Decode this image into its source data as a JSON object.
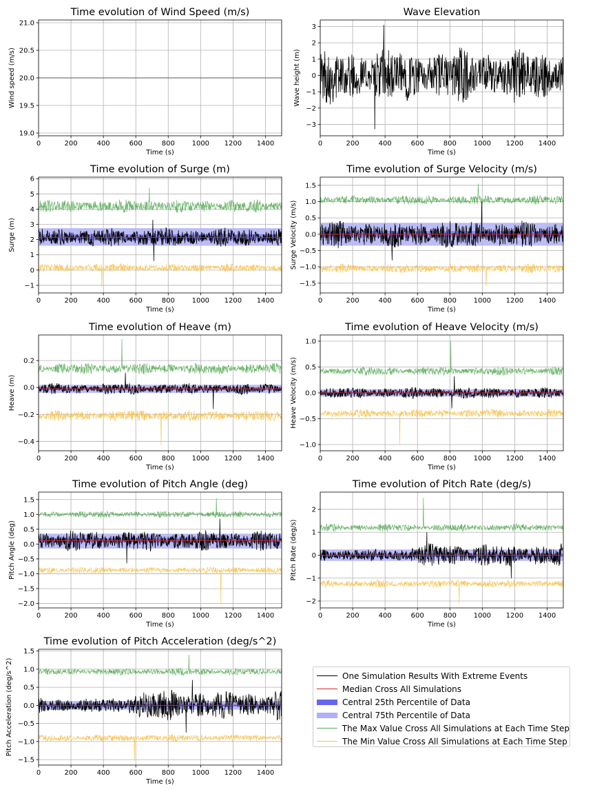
{
  "colors": {
    "simulation": "#000000",
    "median": "#d62728",
    "central25": "#6666ee",
    "central75": "#b0b0f5",
    "max": "#5aab5a",
    "min": "#f7c04a",
    "grid": "#b0b0b0"
  },
  "legend": {
    "items": [
      {
        "label": "One Simulation Results With Extreme Events",
        "key": "simulation",
        "style": "line"
      },
      {
        "label": "Median Cross All Simulations",
        "key": "median",
        "style": "line"
      },
      {
        "label": "Central 25th Percentile of Data",
        "key": "central25",
        "style": "band"
      },
      {
        "label": "Central 75th Percentile of Data",
        "key": "central75",
        "style": "band"
      },
      {
        "label": "The Max Value Cross All Simulations at Each Time Step",
        "key": "max",
        "style": "line"
      },
      {
        "label": "The Min Value Cross All Simulations at Each Time Step",
        "key": "min",
        "style": "line"
      }
    ]
  },
  "chart_data": [
    {
      "id": "wind",
      "type": "line",
      "title": "Time evolution of Wind Speed (m/s)",
      "xlabel": "Time (s)",
      "ylabel": "Wind speed (m/s)",
      "xlim": [
        0,
        1500
      ],
      "ylim": [
        18.95,
        21.05
      ],
      "xticks": [
        0,
        200,
        400,
        600,
        800,
        1000,
        1200,
        1400
      ],
      "yticks": [
        19.0,
        19.5,
        20.0,
        20.5,
        21.0
      ],
      "ytick_labels": [
        "19.0",
        "19.5",
        "20.0",
        "20.5",
        "21.0"
      ],
      "series": [
        {
          "name": "One Simulation Results With Extreme Events",
          "kind": "constant",
          "value": 20.0
        }
      ]
    },
    {
      "id": "wave",
      "type": "line",
      "title": "Wave Elevation",
      "xlabel": "Time (s)",
      "ylabel": "Wave height (m)",
      "xlim": [
        0,
        1500
      ],
      "ylim": [
        -3.7,
        3.4
      ],
      "xticks": [
        0,
        200,
        400,
        600,
        800,
        1000,
        1200,
        1400
      ],
      "yticks": [
        -3,
        -2,
        -1,
        0,
        1,
        2,
        3
      ],
      "ytick_labels": [
        "−3",
        "−2",
        "−1",
        "0",
        "1",
        "2",
        "3"
      ],
      "series": [
        {
          "name": "One Simulation Results With Extreme Events",
          "kind": "noise",
          "center": 0.0,
          "amplitude": 1.2,
          "peak": 3.1,
          "trough": -3.3
        }
      ]
    },
    {
      "id": "surge",
      "type": "line",
      "title": "Time evolution of Surge (m)",
      "xlabel": "Time (s)",
      "ylabel": "Surge (m)",
      "xlim": [
        0,
        1500
      ],
      "ylim": [
        -1.5,
        6.1
      ],
      "xticks": [
        0,
        200,
        400,
        600,
        800,
        1000,
        1200,
        1400
      ],
      "yticks": [
        -1,
        0,
        1,
        2,
        3,
        4,
        5,
        6
      ],
      "ytick_labels": [
        "−1",
        "0",
        "1",
        "2",
        "3",
        "4",
        "5",
        "6"
      ],
      "bands": [
        {
          "name": "Central 75th Percentile of Data",
          "low": 1.6,
          "high": 2.75
        },
        {
          "name": "Central 25th Percentile of Data",
          "low": 1.95,
          "high": 2.35
        }
      ],
      "series": [
        {
          "name": "The Max Value Cross All Simulations at Each Time Step",
          "kind": "noise",
          "center": 4.2,
          "amplitude": 0.3,
          "peak": 5.4
        },
        {
          "name": "The Min Value Cross All Simulations at Each Time Step",
          "kind": "noise",
          "center": 0.15,
          "amplitude": 0.2,
          "trough": -1.1
        },
        {
          "name": "One Simulation Results With Extreme Events",
          "kind": "noise",
          "center": 2.15,
          "amplitude": 0.45,
          "peak": 3.3,
          "trough": 0.6
        },
        {
          "name": "Median Cross All Simulations",
          "kind": "constant",
          "value": 2.15
        }
      ]
    },
    {
      "id": "surge_vel",
      "type": "line",
      "title": "Time evolution of Surge Velocity (m/s)",
      "xlabel": "Time (s)",
      "ylabel": "Surge Velocity (m/s)",
      "xlim": [
        0,
        1500
      ],
      "ylim": [
        -1.8,
        1.75
      ],
      "xticks": [
        0,
        200,
        400,
        600,
        800,
        1000,
        1200,
        1400
      ],
      "yticks": [
        -1.5,
        -1.0,
        -0.5,
        0.0,
        0.5,
        1.0,
        1.5
      ],
      "ytick_labels": [
        "−1.5",
        "−1.0",
        "−0.5",
        "0.0",
        "0.5",
        "1.0",
        "1.5"
      ],
      "bands": [
        {
          "name": "Central 75th Percentile of Data",
          "low": -0.35,
          "high": 0.35
        },
        {
          "name": "Central 25th Percentile of Data",
          "low": -0.1,
          "high": 0.1
        }
      ],
      "series": [
        {
          "name": "The Max Value Cross All Simulations at Each Time Step",
          "kind": "noise",
          "center": 1.05,
          "amplitude": 0.1,
          "peak": 1.55
        },
        {
          "name": "The Min Value Cross All Simulations at Each Time Step",
          "kind": "noise",
          "center": -1.05,
          "amplitude": 0.1,
          "trough": -1.6
        },
        {
          "name": "One Simulation Results With Extreme Events",
          "kind": "noise",
          "center": 0.0,
          "amplitude": 0.3,
          "peak": 1.0,
          "trough": -0.8
        },
        {
          "name": "Median Cross All Simulations",
          "kind": "constant",
          "value": 0.0
        }
      ]
    },
    {
      "id": "heave",
      "type": "line",
      "title": "Time evolution of Heave (m)",
      "xlabel": "Time (s)",
      "ylabel": "Heave (m)",
      "xlim": [
        0,
        1500
      ],
      "ylim": [
        -0.47,
        0.39
      ],
      "xticks": [
        0,
        200,
        400,
        600,
        800,
        1000,
        1200,
        1400
      ],
      "yticks": [
        -0.4,
        -0.2,
        0.0,
        0.2
      ],
      "ytick_labels": [
        "−0.4",
        "−0.2",
        "0.0",
        "0.2"
      ],
      "bands": [
        {
          "name": "Central 75th Percentile of Data",
          "low": -0.04,
          "high": 0.02
        },
        {
          "name": "Central 25th Percentile of Data",
          "low": -0.02,
          "high": 0.0
        }
      ],
      "series": [
        {
          "name": "The Max Value Cross All Simulations at Each Time Step",
          "kind": "noise",
          "center": 0.14,
          "amplitude": 0.03,
          "peak": 0.36
        },
        {
          "name": "The Min Value Cross All Simulations at Each Time Step",
          "kind": "noise",
          "center": -0.21,
          "amplitude": 0.03,
          "trough": -0.43
        },
        {
          "name": "One Simulation Results With Extreme Events",
          "kind": "noise",
          "center": -0.01,
          "amplitude": 0.03,
          "peak": 0.11,
          "trough": -0.16
        },
        {
          "name": "Median Cross All Simulations",
          "kind": "constant",
          "value": -0.01
        }
      ]
    },
    {
      "id": "heave_vel",
      "type": "line",
      "title": "Time evolution of Heave Velocity (m/s)",
      "xlabel": "Time (s)",
      "ylabel": "Heave Velocity (m/s)",
      "xlim": [
        0,
        1500
      ],
      "ylim": [
        -1.12,
        1.12
      ],
      "xticks": [
        0,
        200,
        400,
        600,
        800,
        1000,
        1200,
        1400
      ],
      "yticks": [
        -1.0,
        -0.5,
        0.0,
        0.5,
        1.0
      ],
      "ytick_labels": [
        "−1.0",
        "−0.5",
        "0.0",
        "0.5",
        "1.0"
      ],
      "bands": [
        {
          "name": "Central 75th Percentile of Data",
          "low": -0.07,
          "high": 0.07
        },
        {
          "name": "Central 25th Percentile of Data",
          "low": -0.02,
          "high": 0.02
        }
      ],
      "series": [
        {
          "name": "The Max Value Cross All Simulations at Each Time Step",
          "kind": "noise",
          "center": 0.42,
          "amplitude": 0.06,
          "peak": 1.0
        },
        {
          "name": "The Min Value Cross All Simulations at Each Time Step",
          "kind": "noise",
          "center": -0.4,
          "amplitude": 0.06,
          "trough": -1.0
        },
        {
          "name": "One Simulation Results With Extreme Events",
          "kind": "noise",
          "center": 0.0,
          "amplitude": 0.08,
          "peak": 0.32,
          "trough": -0.3
        },
        {
          "name": "Median Cross All Simulations",
          "kind": "constant",
          "value": 0.0
        }
      ]
    },
    {
      "id": "pitch",
      "type": "line",
      "title": "Time evolution of Pitch Angle (deg)",
      "xlabel": "Time (s)",
      "ylabel": "Pitch Angle (deg)",
      "xlim": [
        0,
        1500
      ],
      "ylim": [
        -2.15,
        1.75
      ],
      "xticks": [
        0,
        200,
        400,
        600,
        800,
        1000,
        1200,
        1400
      ],
      "yticks": [
        -2.0,
        -1.5,
        -1.0,
        -0.5,
        0.0,
        0.5,
        1.0,
        1.5
      ],
      "ytick_labels": [
        "−2.0",
        "−1.5",
        "−1.0",
        "−0.5",
        "0.0",
        "0.5",
        "1.0",
        "1.5"
      ],
      "bands": [
        {
          "name": "Central 75th Percentile of Data",
          "low": -0.15,
          "high": 0.35
        },
        {
          "name": "Central 25th Percentile of Data",
          "low": 0.05,
          "high": 0.2
        }
      ],
      "series": [
        {
          "name": "The Max Value Cross All Simulations at Each Time Step",
          "kind": "noise",
          "center": 1.0,
          "amplitude": 0.08,
          "peak": 1.55
        },
        {
          "name": "The Min Value Cross All Simulations at Each Time Step",
          "kind": "noise",
          "center": -0.88,
          "amplitude": 0.08,
          "trough": -2.0
        },
        {
          "name": "One Simulation Results With Extreme Events",
          "kind": "noise",
          "center": 0.1,
          "amplitude": 0.25,
          "peak": 0.85,
          "trough": -0.65
        },
        {
          "name": "Median Cross All Simulations",
          "kind": "constant",
          "value": 0.12
        }
      ]
    },
    {
      "id": "pitch_rate",
      "type": "line",
      "title": "Time evolution of Pitch Rate (deg/s)",
      "xlabel": "Time (s)",
      "ylabel": "Pitch Rate (deg/s)",
      "xlim": [
        0,
        1500
      ],
      "ylim": [
        -2.3,
        2.75
      ],
      "xticks": [
        0,
        200,
        400,
        600,
        800,
        1000,
        1200,
        1400
      ],
      "yticks": [
        -2,
        -1,
        0,
        1,
        2
      ],
      "ytick_labels": [
        "−2",
        "−1",
        "0",
        "1",
        "2"
      ],
      "bands": [
        {
          "name": "Central 75th Percentile of Data",
          "low": -0.25,
          "high": 0.25
        },
        {
          "name": "Central 25th Percentile of Data",
          "low": -0.08,
          "high": 0.08
        }
      ],
      "series": [
        {
          "name": "The Max Value Cross All Simulations at Each Time Step",
          "kind": "noise",
          "center": 1.2,
          "amplitude": 0.12,
          "peak": 2.5
        },
        {
          "name": "The Min Value Cross All Simulations at Each Time Step",
          "kind": "noise",
          "center": -1.25,
          "amplitude": 0.12,
          "trough": -2.1
        },
        {
          "name": "One Simulation Results With Extreme Events",
          "kind": "noise",
          "center": 0.0,
          "amplitude": 0.2,
          "peak": 1.0,
          "trough": -1.0,
          "burst_from": 560,
          "burst_gain": 1.8
        },
        {
          "name": "Median Cross All Simulations",
          "kind": "constant",
          "value": 0.0
        }
      ]
    },
    {
      "id": "pitch_acc",
      "type": "line",
      "title": "Time evolution of Pitch Acceleration (deg/s^2)",
      "xlabel": "Time (s)",
      "ylabel": "Pitch Acceleration (deg/s^2)",
      "xlim": [
        0,
        1500
      ],
      "ylim": [
        -1.65,
        1.55
      ],
      "xticks": [
        0,
        200,
        400,
        600,
        800,
        1000,
        1200,
        1400
      ],
      "yticks": [
        -1.5,
        -1.0,
        -0.5,
        0.0,
        0.5,
        1.0,
        1.5
      ],
      "ytick_labels": [
        "−1.5",
        "−1.0",
        "−0.5",
        "0.0",
        "0.5",
        "1.0",
        "1.5"
      ],
      "bands": [
        {
          "name": "Central 75th Percentile of Data",
          "low": -0.12,
          "high": 0.12
        },
        {
          "name": "Central 25th Percentile of Data",
          "low": -0.04,
          "high": 0.04
        }
      ],
      "series": [
        {
          "name": "The Max Value Cross All Simulations at Each Time Step",
          "kind": "noise",
          "center": 0.93,
          "amplitude": 0.07,
          "peak": 1.4
        },
        {
          "name": "The Min Value Cross All Simulations at Each Time Step",
          "kind": "noise",
          "center": -0.9,
          "amplitude": 0.07,
          "trough": -1.5
        },
        {
          "name": "One Simulation Results With Extreme Events",
          "kind": "noise",
          "center": 0.0,
          "amplitude": 0.15,
          "peak": 0.7,
          "trough": -0.75,
          "burst_from": 550,
          "burst_gain": 2.0
        },
        {
          "name": "Median Cross All Simulations",
          "kind": "constant",
          "value": 0.0
        }
      ]
    }
  ]
}
